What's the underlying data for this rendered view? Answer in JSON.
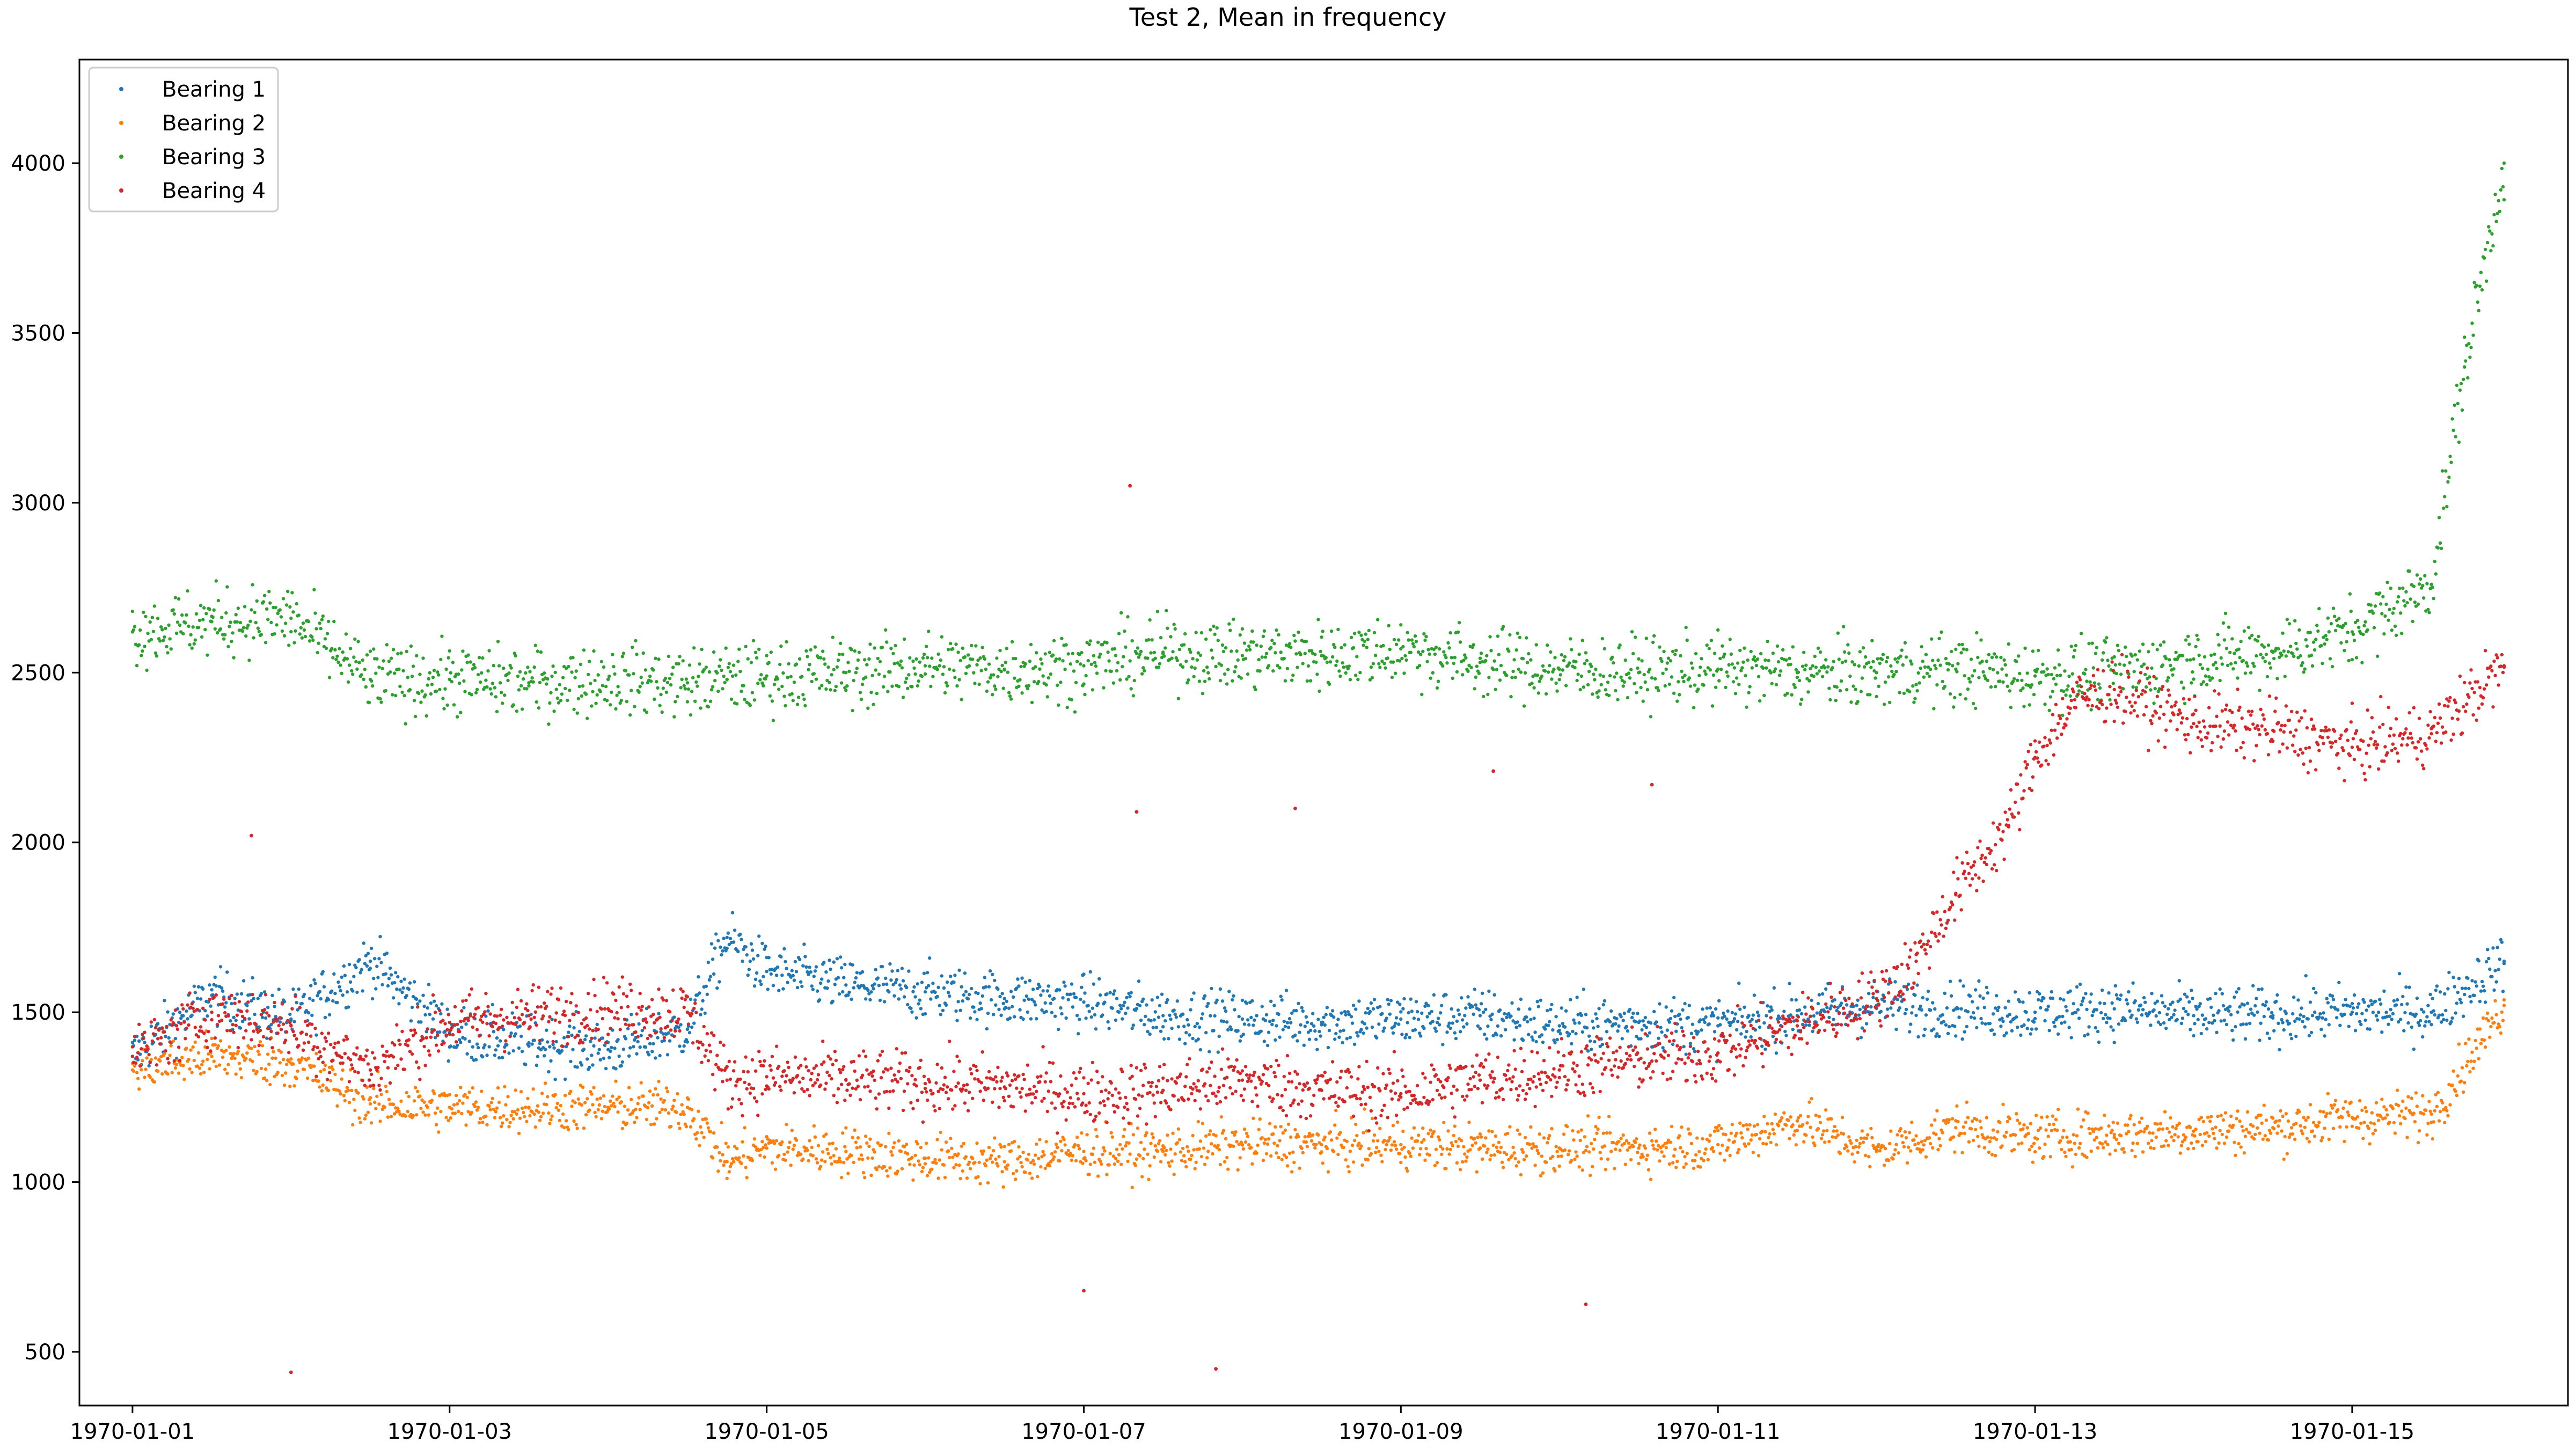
{
  "chart_data": {
    "type": "scatter",
    "title": "Test 2, Mean in frequency",
    "xlabel": "",
    "ylabel": "",
    "x_axis_type": "date",
    "xlim": [
      "1969-12-31T15:58",
      "1970-01-16T08:40"
    ],
    "ylim": [
      342,
      4305
    ],
    "x_tick_labels": [
      "1970-01-01",
      "1970-01-03",
      "1970-01-05",
      "1970-01-07",
      "1970-01-09",
      "1970-01-11",
      "1970-01-13",
      "1970-01-15"
    ],
    "y_ticks": [
      500,
      1000,
      1500,
      2000,
      2500,
      3000,
      3500,
      4000
    ],
    "grid": false,
    "legend": {
      "position": "top-left",
      "entries": [
        "Bearing 1",
        "Bearing 2",
        "Bearing 3",
        "Bearing 4"
      ]
    },
    "marker": "point",
    "series": [
      {
        "name": "Bearing 1",
        "color": "#1f77b4",
        "x": [
          "1970-01-01T00:00",
          "1970-01-01T12:00",
          "1970-01-02T00:00",
          "1970-01-02T12:00",
          "1970-01-03T00:00",
          "1970-01-03T12:00",
          "1970-01-04T00:00",
          "1970-01-04T12:00",
          "1970-01-04T18:00",
          "1970-01-05T00:00",
          "1970-01-05T12:00",
          "1970-01-06T00:00",
          "1970-01-06T12:00",
          "1970-01-07T00:00",
          "1970-01-07T12:00",
          "1970-01-08T00:00",
          "1970-01-08T12:00",
          "1970-01-09T00:00",
          "1970-01-09T12:00",
          "1970-01-10T00:00",
          "1970-01-10T12:00",
          "1970-01-11T00:00",
          "1970-01-11T12:00",
          "1970-01-12T00:00",
          "1970-01-12T12:00",
          "1970-01-13T00:00",
          "1970-01-13T12:00",
          "1970-01-14T00:00",
          "1970-01-14T12:00",
          "1970-01-15T00:00",
          "1970-01-15T12:00",
          "1970-01-15T23:00"
        ],
        "y": [
          1370,
          1550,
          1480,
          1650,
          1440,
          1410,
          1390,
          1450,
          1720,
          1620,
          1580,
          1560,
          1540,
          1530,
          1490,
          1480,
          1470,
          1480,
          1490,
          1460,
          1470,
          1460,
          1490,
          1520,
          1510,
          1500,
          1510,
          1490,
          1490,
          1500,
          1500,
          1650
        ]
      },
      {
        "name": "Bearing 2",
        "color": "#ff7f0e",
        "x": [
          "1970-01-01T00:00",
          "1970-01-01T12:00",
          "1970-01-02T00:00",
          "1970-01-02T12:00",
          "1970-01-03T00:00",
          "1970-01-03T12:00",
          "1970-01-04T00:00",
          "1970-01-04T12:00",
          "1970-01-04T18:00",
          "1970-01-05T00:00",
          "1970-01-05T12:00",
          "1970-01-06T00:00",
          "1970-01-06T12:00",
          "1970-01-07T00:00",
          "1970-01-07T12:00",
          "1970-01-08T00:00",
          "1970-01-08T12:00",
          "1970-01-09T00:00",
          "1970-01-09T12:00",
          "1970-01-10T00:00",
          "1970-01-10T12:00",
          "1970-01-11T00:00",
          "1970-01-11T12:00",
          "1970-01-12T00:00",
          "1970-01-12T12:00",
          "1970-01-13T00:00",
          "1970-01-13T12:00",
          "1970-01-14T00:00",
          "1970-01-14T12:00",
          "1970-01-15T00:00",
          "1970-01-15T12:00",
          "1970-01-15T23:00"
        ],
        "y": [
          1330,
          1370,
          1350,
          1230,
          1220,
          1220,
          1220,
          1220,
          1060,
          1100,
          1090,
          1070,
          1060,
          1090,
          1090,
          1110,
          1110,
          1110,
          1100,
          1100,
          1100,
          1110,
          1180,
          1090,
          1160,
          1130,
          1140,
          1150,
          1160,
          1190,
          1200,
          1520
        ]
      },
      {
        "name": "Bearing 3",
        "color": "#2ca02c",
        "x": [
          "1970-01-01T00:00",
          "1970-01-01T12:00",
          "1970-01-02T00:00",
          "1970-01-02T12:00",
          "1970-01-03T00:00",
          "1970-01-03T12:00",
          "1970-01-04T00:00",
          "1970-01-04T12:00",
          "1970-01-04T18:00",
          "1970-01-05T00:00",
          "1970-01-05T12:00",
          "1970-01-06T00:00",
          "1970-01-06T12:00",
          "1970-01-07T00:00",
          "1970-01-07T12:00",
          "1970-01-08T00:00",
          "1970-01-08T12:00",
          "1970-01-09T00:00",
          "1970-01-09T12:00",
          "1970-01-10T00:00",
          "1970-01-10T12:00",
          "1970-01-11T00:00",
          "1970-01-11T12:00",
          "1970-01-12T00:00",
          "1970-01-12T12:00",
          "1970-01-13T00:00",
          "1970-01-13T12:00",
          "1970-01-14T00:00",
          "1970-01-14T12:00",
          "1970-01-15T00:00",
          "1970-01-15T12:00",
          "1970-01-15T17:00",
          "1970-01-15T23:00"
        ],
        "y": [
          2620,
          2650,
          2660,
          2480,
          2480,
          2470,
          2480,
          2470,
          2480,
          2490,
          2500,
          2520,
          2510,
          2520,
          2560,
          2550,
          2550,
          2570,
          2530,
          2510,
          2500,
          2510,
          2500,
          2500,
          2510,
          2490,
          2500,
          2540,
          2560,
          2620,
          2760,
          3400,
          4000
        ]
      },
      {
        "name": "Bearing 4",
        "color": "#d62728",
        "x": [
          "1970-01-01T00:00",
          "1970-01-01T12:00",
          "1970-01-02T00:00",
          "1970-01-02T12:00",
          "1970-01-03T00:00",
          "1970-01-03T12:00",
          "1970-01-04T00:00",
          "1970-01-04T12:00",
          "1970-01-04T18:00",
          "1970-01-05T00:00",
          "1970-01-05T12:00",
          "1970-01-06T00:00",
          "1970-01-06T12:00",
          "1970-01-07T00:00",
          "1970-01-07T12:00",
          "1970-01-08T00:00",
          "1970-01-08T12:00",
          "1970-01-09T00:00",
          "1970-01-09T12:00",
          "1970-01-10T00:00",
          "1970-01-10T12:00",
          "1970-01-11T00:00",
          "1970-01-11T12:00",
          "1970-01-12T00:00",
          "1970-01-12T06:00",
          "1970-01-12T12:00",
          "1970-01-12T20:00",
          "1970-01-13T00:00",
          "1970-01-13T06:00",
          "1970-01-13T12:00",
          "1970-01-14T00:00",
          "1970-01-14T12:00",
          "1970-01-15T00:00",
          "1970-01-15T12:00",
          "1970-01-15T23:00"
        ],
        "y": [
          1370,
          1500,
          1460,
          1330,
          1470,
          1490,
          1510,
          1500,
          1300,
          1310,
          1300,
          1290,
          1280,
          1260,
          1270,
          1300,
          1270,
          1260,
          1300,
          1330,
          1360,
          1380,
          1460,
          1540,
          1650,
          1850,
          2050,
          2250,
          2420,
          2450,
          2350,
          2330,
          2280,
          2320,
          2520
        ]
      }
    ],
    "outliers": [
      {
        "series": "Bearing 4",
        "x": "1970-01-02T00:00",
        "y": 440
      },
      {
        "series": "Bearing 4",
        "x": "1970-01-01T18:00",
        "y": 2020
      },
      {
        "series": "Bearing 4",
        "x": "1970-01-07T07:00",
        "y": 3050
      },
      {
        "series": "Bearing 4",
        "x": "1970-01-07T08:00",
        "y": 2090
      },
      {
        "series": "Bearing 4",
        "x": "1970-01-07T20:00",
        "y": 450
      },
      {
        "series": "Bearing 4",
        "x": "1970-01-08T08:00",
        "y": 2100
      },
      {
        "series": "Bearing 4",
        "x": "1970-01-09T14:00",
        "y": 2210
      },
      {
        "series": "Bearing 4",
        "x": "1970-01-10T14:00",
        "y": 2170
      },
      {
        "series": "Bearing 4",
        "x": "1970-01-07T00:00",
        "y": 680
      },
      {
        "series": "Bearing 4",
        "x": "1970-01-10T04:00",
        "y": 640
      }
    ]
  }
}
